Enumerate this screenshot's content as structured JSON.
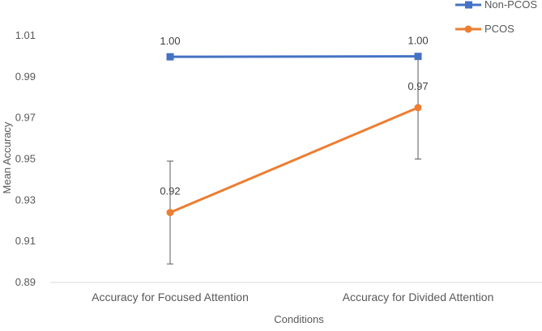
{
  "chart_data": {
    "type": "line",
    "xlabel": "Conditions",
    "ylabel": "Mean Accuracy",
    "categories": [
      "Accuracy for Focused Attention",
      "Accuracy for Divided Attention"
    ],
    "ylim": [
      0.89,
      1.01
    ],
    "yticks": [
      "0.89",
      "0.91",
      "0.93",
      "0.95",
      "0.97",
      "0.99",
      "1.01"
    ],
    "grid": false,
    "legend_position": "top-right",
    "series": [
      {
        "name": "Non-PCOS",
        "values": [
          0.9997,
          0.9999
        ],
        "data_labels": [
          "1.00",
          "1.00"
        ],
        "error": [
          0,
          0
        ],
        "color": "#4472C4",
        "marker": "square"
      },
      {
        "name": "PCOS",
        "values": [
          0.924,
          0.975
        ],
        "data_labels": [
          "0.92",
          "0.97"
        ],
        "error": [
          0.025,
          0.025
        ],
        "color": "#ED7D31",
        "marker": "circle"
      }
    ]
  }
}
